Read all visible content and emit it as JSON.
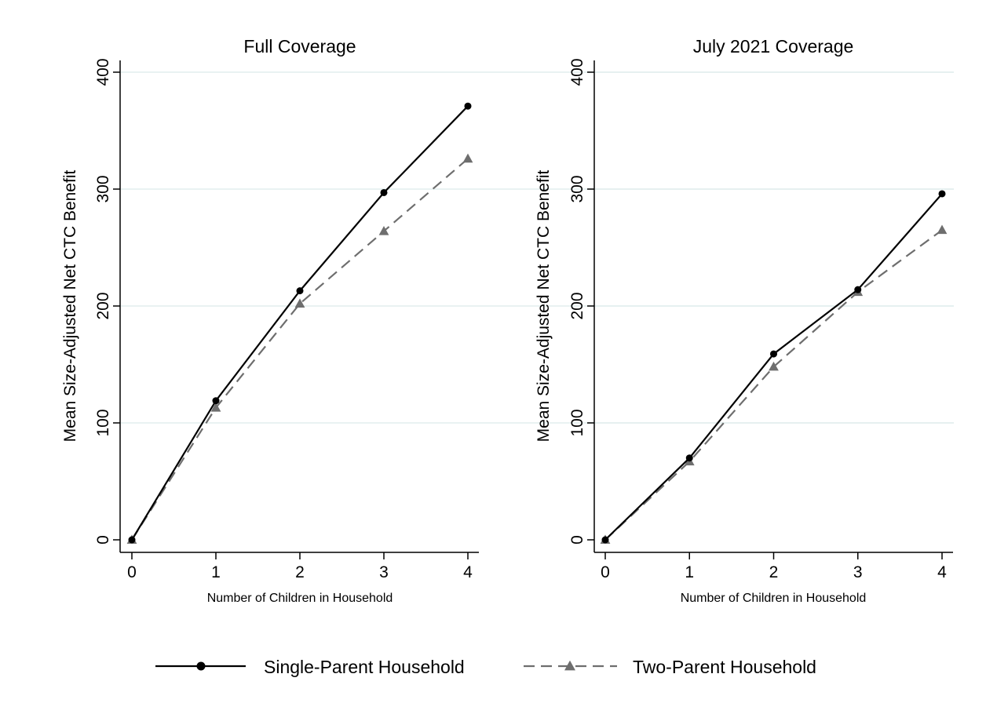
{
  "chart_data": [
    {
      "type": "line",
      "title": "Full Coverage",
      "xlabel": "Number of Children in Household",
      "ylabel": "Mean Size-Adjusted Net CTC Benefit",
      "x": [
        0,
        1,
        2,
        3,
        4
      ],
      "xlim": [
        0,
        4
      ],
      "ylim": [
        0,
        400
      ],
      "xticks": [
        "0",
        "1",
        "2",
        "3",
        "4"
      ],
      "yticks": [
        "0",
        "100",
        "200",
        "300",
        "400"
      ],
      "grid": true,
      "series": [
        {
          "name": "Single-Parent Household",
          "values": [
            0,
            119,
            213,
            297,
            371
          ],
          "color": "#000000",
          "marker": "circle",
          "line": "solid"
        },
        {
          "name": "Two-Parent Household",
          "values": [
            0,
            113,
            202,
            264,
            326
          ],
          "color": "#6e6e6e",
          "marker": "triangle",
          "line": "dashed"
        }
      ]
    },
    {
      "type": "line",
      "title": "July 2021 Coverage",
      "xlabel": "Number of Children in Household",
      "ylabel": "Mean Size-Adjusted Net CTC Benefit",
      "x": [
        0,
        1,
        2,
        3,
        4
      ],
      "xlim": [
        0,
        4
      ],
      "ylim": [
        0,
        400
      ],
      "xticks": [
        "0",
        "1",
        "2",
        "3",
        "4"
      ],
      "yticks": [
        "0",
        "100",
        "200",
        "300",
        "400"
      ],
      "grid": true,
      "series": [
        {
          "name": "Single-Parent Household",
          "values": [
            0,
            70,
            159,
            214,
            296
          ],
          "color": "#000000",
          "marker": "circle",
          "line": "solid"
        },
        {
          "name": "Two-Parent Household",
          "values": [
            0,
            67,
            148,
            212,
            265
          ],
          "color": "#6e6e6e",
          "marker": "triangle",
          "line": "dashed"
        }
      ]
    }
  ],
  "legend": {
    "placement": "bottom",
    "items": [
      {
        "label": "Single-Parent Household",
        "color": "#000000",
        "marker": "circle",
        "line": "solid"
      },
      {
        "label": "Two-Parent Household",
        "color": "#6e6e6e",
        "marker": "triangle",
        "line": "dashed"
      }
    ]
  },
  "colors": {
    "grid": "#e2eeee",
    "axis": "#000000"
  }
}
